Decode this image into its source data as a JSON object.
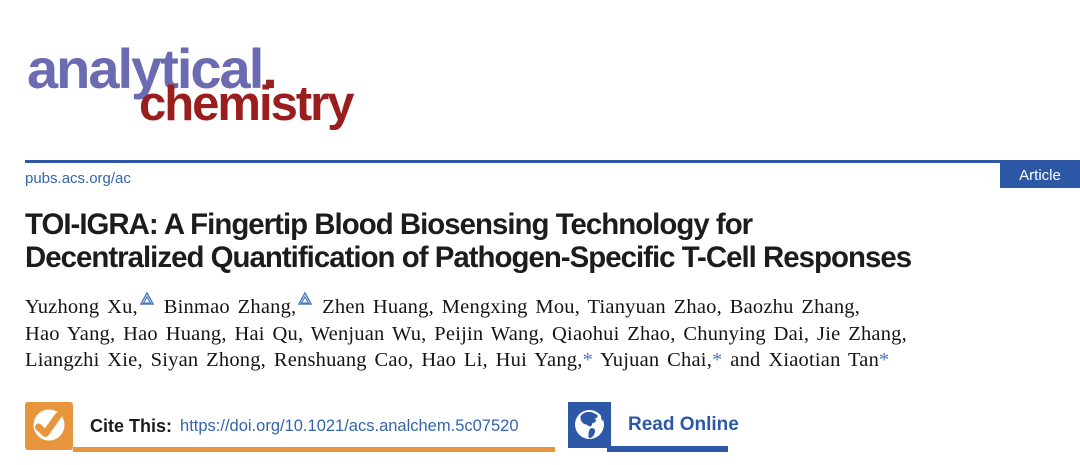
{
  "logo": {
    "word1": "analytical",
    "dot": ".",
    "word2": "chemistry"
  },
  "masthead": {
    "url": "pubs.acs.org/ac",
    "badge": "Article"
  },
  "title": {
    "line1": "TOI-IGRA: A Fingertip Blood Biosensing Technology for",
    "line2": "Decentralized Quantification of Pathogen-Specific T-Cell Responses"
  },
  "authors": {
    "lines": [
      {
        "segments": [
          {
            "text": "Yuzhong Xu,"
          },
          {
            "sup": "equal-contribution"
          },
          {
            "text": " Binmao Zhang,"
          },
          {
            "sup": "equal-contribution"
          },
          {
            "text": " Zhen Huang, Mengxing Mou, Tianyuan Zhao, Baozhu Zhang,"
          }
        ]
      },
      {
        "segments": [
          {
            "text": "Hao Yang, Hao Huang, Hai Qu, Wenjuan Wu, Peijin Wang, Qiaohui Zhao, Chunying Dai, Jie Zhang,"
          }
        ]
      },
      {
        "segments": [
          {
            "text": "Liangzhi Xie, Siyan Zhong, Renshuang Cao, Hao Li, Hui Yang,"
          },
          {
            "star": "*"
          },
          {
            "text": " Yujuan Chai,"
          },
          {
            "star": "*"
          },
          {
            "text": " and Xiaotian Tan"
          },
          {
            "star": "*"
          }
        ]
      }
    ]
  },
  "cite": {
    "label": "Cite This:",
    "doi": "https://doi.org/10.1021/acs.analchem.5c07520"
  },
  "read_online": {
    "label": "Read Online"
  },
  "icons": {
    "cite_check": "check-circle-icon",
    "read_globe": "globe-icon",
    "equal_contribution": "nested-triangle-icon"
  },
  "colors": {
    "acs_blue": "#2d58a8",
    "link_blue": "#3465a8",
    "logo_purple": "#6b6bb2",
    "logo_red": "#9b1e1e",
    "cite_orange": "#e8963e",
    "star_blue": "#4a7abf",
    "title_black": "#1c1c1c"
  }
}
